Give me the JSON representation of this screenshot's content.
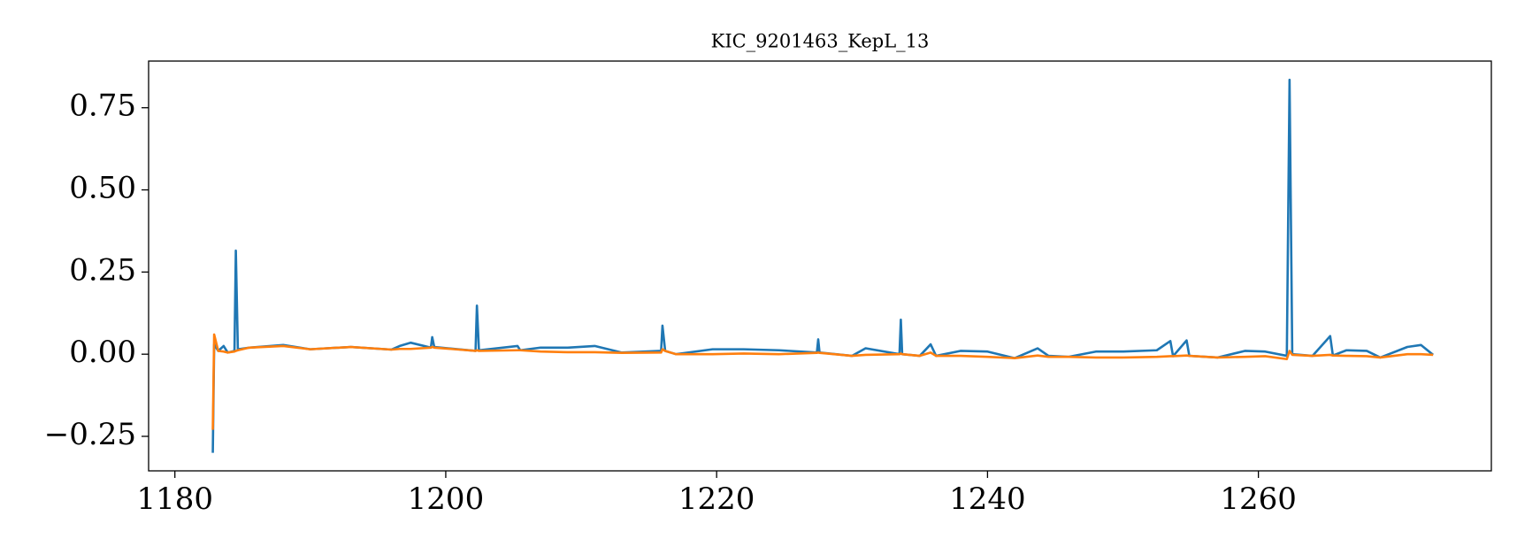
{
  "chart_data": {
    "type": "line",
    "title": "KIC_9201463_KepL_13",
    "x": [
      1182.8,
      1182.9,
      1183.2,
      1183.6,
      1183.9,
      1184.4,
      1184.5,
      1184.65,
      1185.5,
      1188,
      1190,
      1193,
      1196,
      1196.6,
      1197.4,
      1198.9,
      1199.0,
      1199.15,
      1202.2,
      1202.3,
      1202.45,
      1205.3,
      1205.5,
      1207,
      1209,
      1211,
      1213,
      1215.9,
      1216.0,
      1216.2,
      1217,
      1219.7,
      1222,
      1224.6,
      1227.4,
      1227.5,
      1227.6,
      1230,
      1231,
      1233.5,
      1233.6,
      1233.7,
      1235,
      1235.8,
      1236.2,
      1238,
      1240,
      1242,
      1243.7,
      1244.5,
      1246,
      1248,
      1250,
      1252.5,
      1253.5,
      1253.7,
      1254.7,
      1254.9,
      1257,
      1259,
      1260.5,
      1262.1,
      1262.3,
      1262.5,
      1264,
      1265.3,
      1265.5,
      1266.5,
      1268,
      1269,
      1271,
      1272,
      1272.9
    ],
    "series": [
      {
        "color": "#1f77b4",
        "values": [
          -0.3,
          0.03,
          0.01,
          0.025,
          0.005,
          0.01,
          0.315,
          0.015,
          0.02,
          0.028,
          0.015,
          0.022,
          0.014,
          0.025,
          0.035,
          0.02,
          0.052,
          0.022,
          0.01,
          0.148,
          0.012,
          0.025,
          0.012,
          0.02,
          0.02,
          0.025,
          0.005,
          0.01,
          0.087,
          0.01,
          0.0,
          0.015,
          0.015,
          0.012,
          0.005,
          0.045,
          0.005,
          -0.005,
          0.018,
          0.0,
          0.105,
          0.0,
          -0.005,
          0.03,
          -0.005,
          0.01,
          0.008,
          -0.012,
          0.018,
          -0.005,
          -0.008,
          0.008,
          0.008,
          0.012,
          0.04,
          -0.006,
          0.042,
          -0.005,
          -0.01,
          0.01,
          0.008,
          -0.005,
          0.835,
          0.0,
          -0.005,
          0.055,
          -0.004,
          0.012,
          0.01,
          -0.01,
          0.022,
          0.028,
          -0.002
        ]
      },
      {
        "color": "#ff7f0e",
        "values": [
          -0.23,
          0.06,
          0.01,
          0.008,
          0.005,
          0.008,
          0.01,
          0.012,
          0.02,
          0.025,
          0.015,
          0.022,
          0.014,
          0.016,
          0.016,
          0.02,
          0.022,
          0.02,
          0.01,
          0.012,
          0.01,
          0.012,
          0.012,
          0.008,
          0.006,
          0.006,
          0.004,
          0.005,
          0.015,
          0.01,
          0.0,
          0.0,
          0.002,
          0.0,
          0.004,
          0.005,
          0.004,
          -0.005,
          -0.002,
          0.0,
          0.002,
          0.0,
          -0.005,
          0.005,
          -0.005,
          -0.005,
          -0.008,
          -0.012,
          -0.004,
          -0.008,
          -0.008,
          -0.01,
          -0.01,
          -0.008,
          -0.006,
          -0.006,
          -0.004,
          -0.005,
          -0.01,
          -0.008,
          -0.006,
          -0.015,
          0.01,
          -0.002,
          -0.005,
          -0.002,
          -0.004,
          -0.005,
          -0.006,
          -0.01,
          0.0,
          0.0,
          -0.002
        ]
      }
    ],
    "xlim": [
      1178.06,
      1277.2
    ],
    "ylim": [
      -0.355,
      0.892
    ],
    "xticks": [
      1180,
      1200,
      1220,
      1240,
      1260
    ],
    "yticks": [
      {
        "value": -0.25,
        "label": "−0.25"
      },
      {
        "value": 0,
        "label": "0.00"
      },
      0.25,
      {
        "value": 0.5,
        "label": "0.50"
      },
      0.75
    ]
  }
}
